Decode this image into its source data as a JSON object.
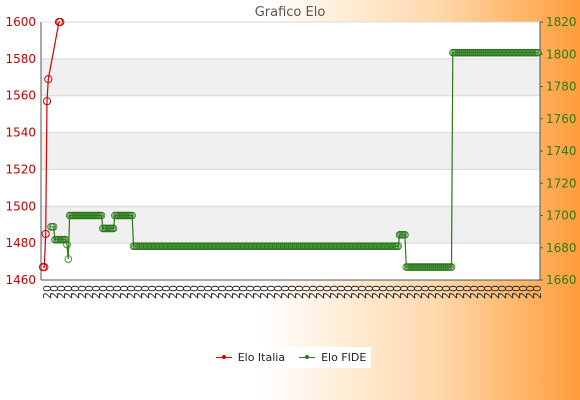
{
  "chart_data": {
    "type": "line",
    "title": "Grafico Elo",
    "legend_position": "bottom-center",
    "grid": true,
    "left_axis": {
      "ylim": [
        1460,
        1600
      ],
      "ticks": [
        1460,
        1480,
        1500,
        1520,
        1540,
        1560,
        1580,
        1600
      ],
      "color": "#c00000"
    },
    "right_axis": {
      "ylim": [
        1660,
        1820
      ],
      "ticks": [
        1660,
        1680,
        1700,
        1720,
        1740,
        1760,
        1780,
        1800,
        1820
      ],
      "color": "#2a7a1a"
    },
    "x_label_prefix": "20",
    "x_first_label": "2011-1",
    "series": [
      {
        "name": "Elo Italia",
        "axis": "left",
        "color": "#d40000",
        "points": [
          [
            0,
            1467
          ],
          [
            1,
            1467
          ],
          [
            2,
            1485
          ],
          [
            3,
            1557
          ],
          [
            4,
            1569
          ],
          [
            12,
            1600
          ],
          [
            13,
            1600
          ]
        ]
      },
      {
        "name": "Elo FIDE",
        "axis": "right",
        "color": "#2a7a1a",
        "segments": [
          {
            "from": 6,
            "to": 8,
            "value": 1693
          },
          {
            "from": 9,
            "to": 17,
            "value": 1685
          },
          {
            "from": 18,
            "to": 18,
            "value": 1682
          },
          {
            "from": 19,
            "to": 19,
            "value": 1673
          },
          {
            "from": 20,
            "to": 44,
            "value": 1700
          },
          {
            "from": 45,
            "to": 53,
            "value": 1692
          },
          {
            "from": 54,
            "to": 67,
            "value": 1700
          },
          {
            "from": 68,
            "to": 267,
            "value": 1681
          },
          {
            "from": 268,
            "to": 272,
            "value": 1688
          },
          {
            "from": 273,
            "to": 307,
            "value": 1668
          },
          {
            "from": 308,
            "to": 372,
            "value": 1801
          }
        ]
      }
    ]
  },
  "x_total_points": 373,
  "legend": {
    "italia_label": "Elo Italia",
    "fide_label": "Elo FIDE"
  }
}
